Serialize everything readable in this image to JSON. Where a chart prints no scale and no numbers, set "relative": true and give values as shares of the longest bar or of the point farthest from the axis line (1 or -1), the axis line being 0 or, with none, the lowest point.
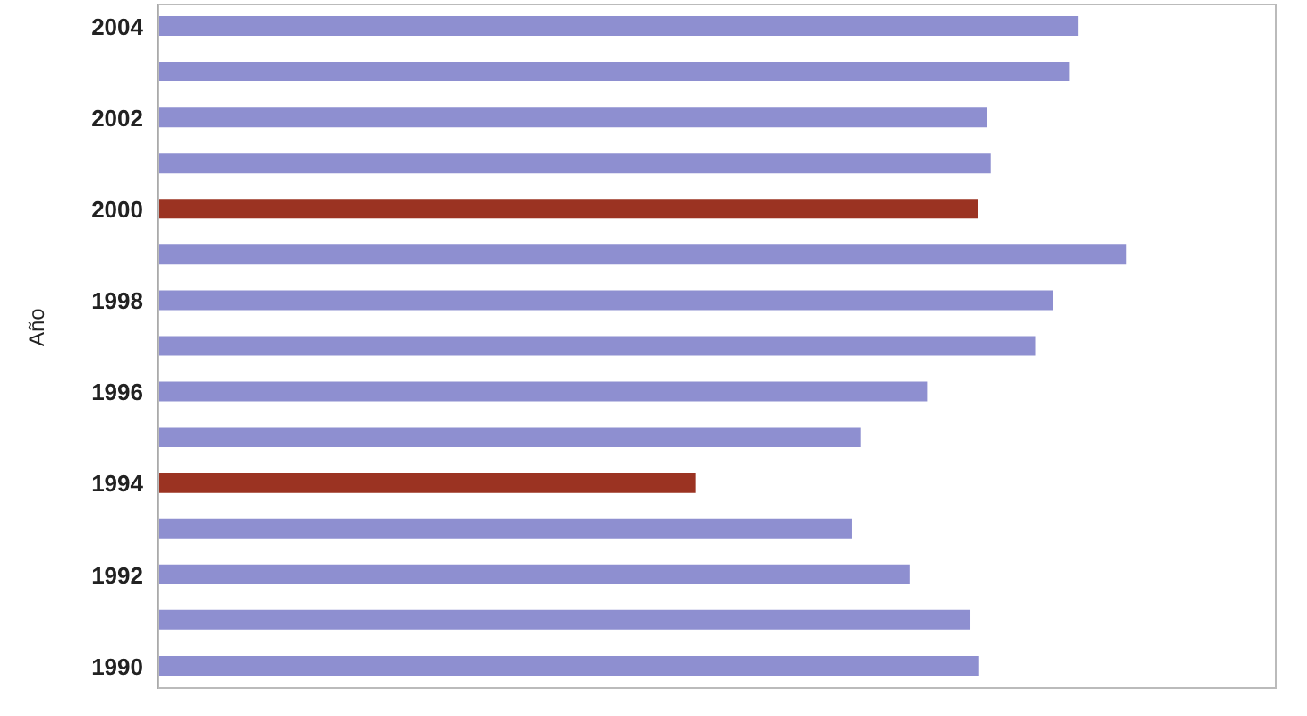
{
  "chart_data": {
    "type": "bar",
    "orientation": "horizontal",
    "relative": true,
    "ylabel": "Año",
    "categories": [
      "2004",
      null,
      "2002",
      null,
      "2000",
      null,
      "1998",
      null,
      "1996",
      null,
      "1994",
      null,
      "1992",
      null,
      "1990"
    ],
    "values": [
      0.95,
      0.941,
      0.856,
      0.86,
      0.847,
      1,
      0.924,
      0.906,
      0.795,
      0.726,
      0.555,
      0.717,
      0.776,
      0.839,
      0.848
    ],
    "colors": [
      "#8e8fd0",
      "#8e8fd0",
      "#8e8fd0",
      "#8e8fd0",
      "#9b3322",
      "#8e8fd0",
      "#8e8fd0",
      "#8e8fd0",
      "#8e8fd0",
      "#8e8fd0",
      "#9b3322",
      "#8e8fd0",
      "#8e8fd0",
      "#8e8fd0",
      "#8e8fd0"
    ],
    "grid": false,
    "legend": false
  }
}
